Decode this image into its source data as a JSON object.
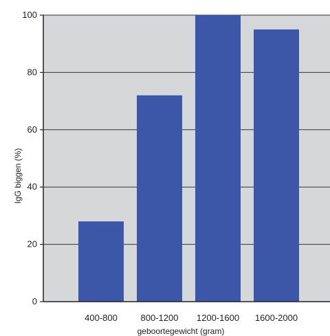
{
  "chart_data": {
    "type": "bar",
    "categories": [
      "400-800",
      "800-1200",
      "1200-1600",
      "1600-2000"
    ],
    "values": [
      28,
      72,
      100,
      95
    ],
    "title": "",
    "xlabel": "geboortegewicht (gram)",
    "ylabel": "IgG biggen (%)",
    "ylim": [
      0,
      100
    ],
    "yticks": [
      0,
      20,
      40,
      60,
      80,
      100
    ],
    "grid": true,
    "legend": "none"
  },
  "colors": {
    "bar": "#3c56a8",
    "plot_background": "#d6d7d9",
    "gridline": "#333333",
    "axis": "#222222"
  }
}
